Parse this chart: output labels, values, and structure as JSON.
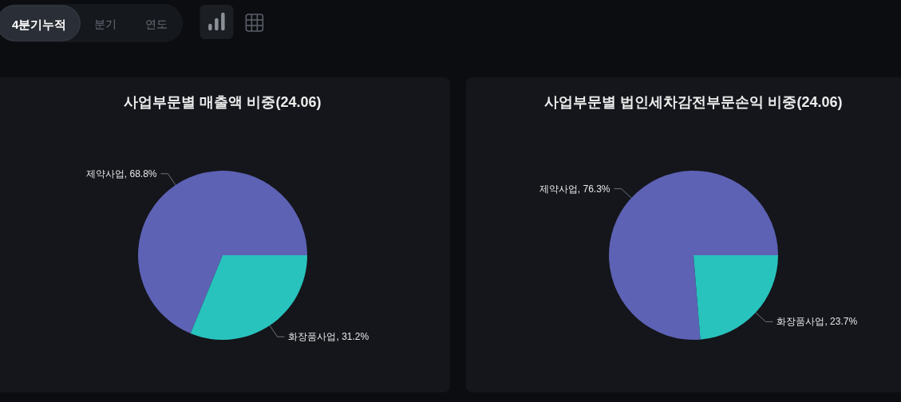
{
  "chart_data": [
    {
      "type": "other",
      "annotations": [
        "4분기누적",
        "분기",
        "연도"
      ]
    },
    {
      "type": "pie",
      "title": "사업부문별 매출액 비중(24.06)",
      "categories": [
        "제약사업",
        "화장품사업"
      ],
      "values": [
        68.8,
        31.2
      ],
      "colors": [
        "#5d62b5",
        "#29c3be"
      ],
      "value_labels": [
        ", 68.8%",
        ", 31.2%"
      ]
    },
    {
      "type": "pie",
      "title": "사업부문별 법인세차감전부문손익 비중(24.06)",
      "categories": [
        "제약사업",
        "화장품사업"
      ],
      "values": [
        76.3,
        23.7
      ],
      "colors": [
        "#5d62b5",
        "#29c3be"
      ],
      "value_labels": [
        ", 76.3%",
        ", 23.7%"
      ]
    }
  ]
}
